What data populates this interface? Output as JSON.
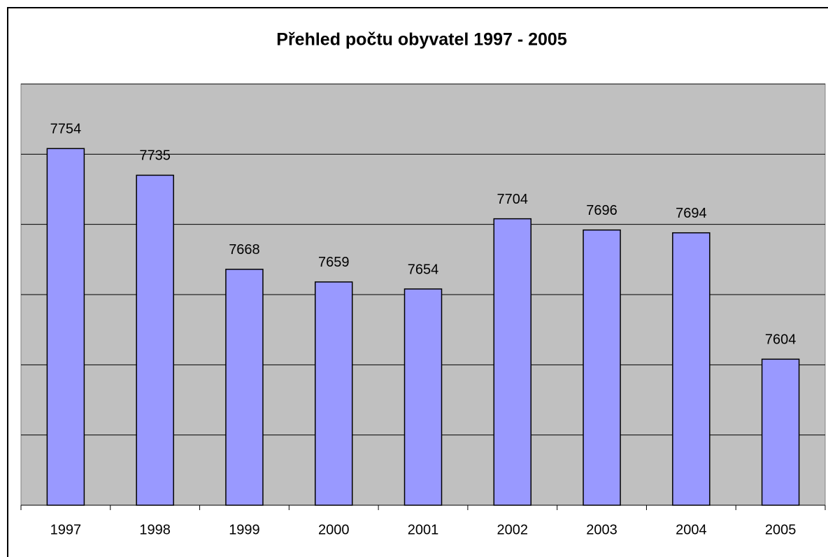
{
  "chart_data": {
    "type": "bar",
    "title": "Přehled počtu obyvatel 1997 - 2005",
    "categories": [
      "1997",
      "1998",
      "1999",
      "2000",
      "2001",
      "2002",
      "2003",
      "2004",
      "2005"
    ],
    "values": [
      7754,
      7735,
      7668,
      7659,
      7654,
      7704,
      7696,
      7694,
      7604
    ],
    "color": "#9999ff",
    "ylim": [
      7500,
      7800
    ],
    "yticks": [
      7500,
      7550,
      7600,
      7650,
      7700,
      7750,
      7800
    ],
    "grid": true
  }
}
